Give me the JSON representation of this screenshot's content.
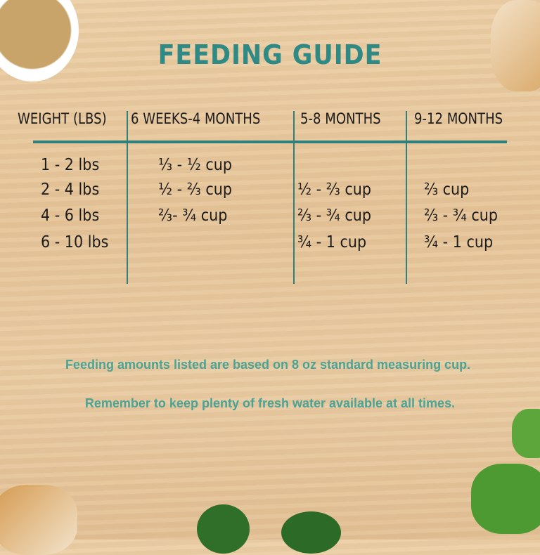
{
  "title": "FEEDING GUIDE",
  "table": {
    "headers": [
      "WEIGHT (LBS)",
      "6 WEEKS-4 MONTHS",
      "5-8 MONTHS",
      "9-12 MONTHS"
    ],
    "rows": [
      [
        "1 - 2 lbs",
        "⅓ - ½ cup",
        "",
        ""
      ],
      [
        "2 - 4 lbs",
        "½ - ⅔ cup",
        "½ - ⅔ cup",
        "⅔ cup"
      ],
      [
        "4 - 6 lbs",
        "⅔- ¾ cup",
        "⅔ - ¾ cup",
        "⅔ - ¾ cup"
      ],
      [
        "6 - 10 lbs",
        "",
        "¾ - 1 cup",
        "¾ - 1 cup"
      ]
    ]
  },
  "notes": [
    "Feeding amounts listed are based on 8 oz standard measuring cup.",
    "Remember to keep plenty of fresh water available at all times."
  ],
  "colors": {
    "accent": "#2f8a85",
    "note": "#4aa395",
    "text": "#1c1c1c"
  },
  "decorations": [
    "rice-bowl",
    "chicken-breast",
    "peas",
    "spinach-leaves"
  ]
}
